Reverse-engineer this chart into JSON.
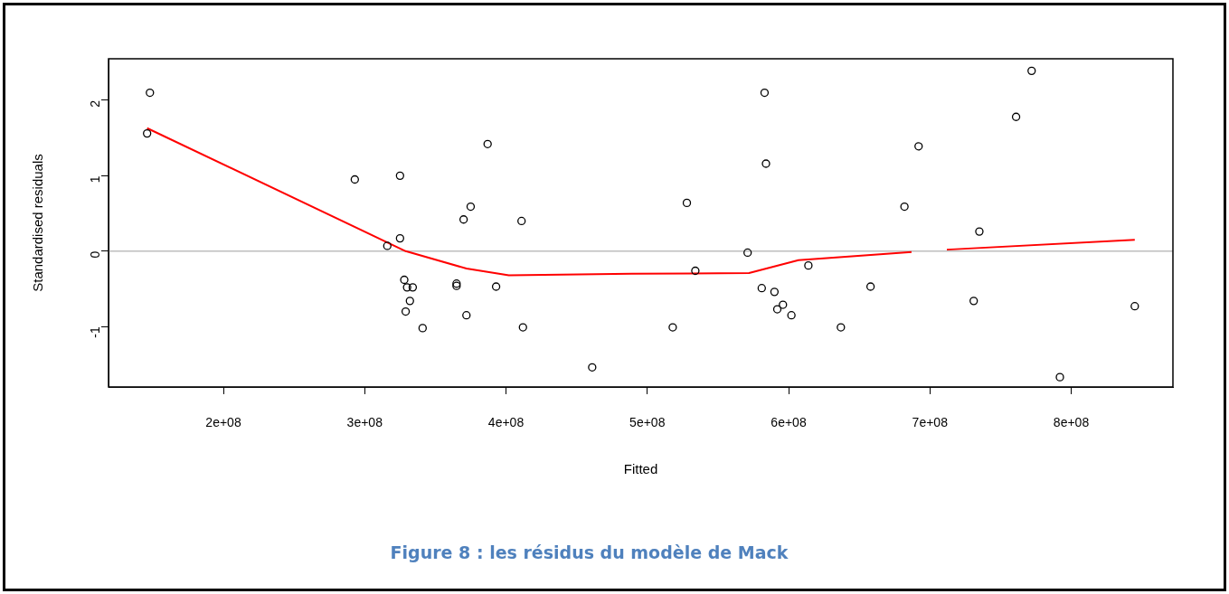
{
  "chart_data": {
    "type": "scatter",
    "xlabel": "Fitted",
    "ylabel": "Standardised residuals",
    "annotations": [
      "Figure 8 : les résidus du modèle de Mack"
    ],
    "xlim": [
      118700000,
      872000000
    ],
    "ylim": [
      -1.8,
      2.55
    ],
    "xticks": [
      {
        "value": 200000000,
        "label": "2e+08"
      },
      {
        "value": 300000000,
        "label": "3e+08"
      },
      {
        "value": 400000000,
        "label": "4e+08"
      },
      {
        "value": 500000000,
        "label": "5e+08"
      },
      {
        "value": 600000000,
        "label": "6e+08"
      },
      {
        "value": 700000000,
        "label": "7e+08"
      },
      {
        "value": 800000000,
        "label": "8e+08"
      }
    ],
    "yticks": [
      -1,
      0,
      1,
      2
    ],
    "grid": false,
    "legend": false,
    "marker": "circle",
    "ref_lines": [
      {
        "axis": "y",
        "value": 0,
        "color": "#bebebe"
      }
    ],
    "series": [
      {
        "color": "#000000",
        "x": [
          146000000,
          148000000,
          293000000,
          316000000,
          325000000,
          325000000,
          328000000,
          330000000,
          334000000,
          332000000,
          329000000,
          341000000,
          365000000,
          365000000,
          370000000,
          375000000,
          387000000,
          372000000,
          393000000,
          411000000,
          412000000,
          461000000,
          518000000,
          528000000,
          534000000,
          571000000,
          583000000,
          584000000,
          581000000,
          590000000,
          592000000,
          596000000,
          602000000,
          614000000,
          637000000,
          658000000,
          682000000,
          692000000,
          731000000,
          735000000,
          761000000,
          772000000,
          792000000,
          845000000
        ],
        "values": [
          1.56,
          2.1,
          0.95,
          0.07,
          1.0,
          0.17,
          -0.38,
          -0.48,
          -0.48,
          -0.66,
          -0.8,
          -1.02,
          -0.46,
          -0.43,
          0.42,
          0.59,
          1.42,
          -0.85,
          -0.47,
          0.4,
          -1.01,
          -1.54,
          -1.01,
          0.64,
          -0.26,
          -0.02,
          2.1,
          1.16,
          -0.49,
          -0.54,
          -0.77,
          -0.71,
          -0.85,
          -0.19,
          -1.01,
          -0.47,
          0.59,
          1.39,
          -0.66,
          0.26,
          1.78,
          2.39,
          -1.67,
          -0.73
        ]
      },
      {
        "type": "line",
        "color": "#ff0000",
        "marker": "none",
        "x": [
          146000000,
          329000000,
          372000000,
          402000000,
          489000000,
          572000000,
          607000000,
          687000000,
          700000000,
          712000000,
          845000000
        ],
        "values": [
          1.63,
          0,
          -0.23,
          -0.32,
          -0.3,
          -0.29,
          -0.12,
          -0.01,
          null,
          0.02,
          0.15
        ]
      }
    ]
  }
}
